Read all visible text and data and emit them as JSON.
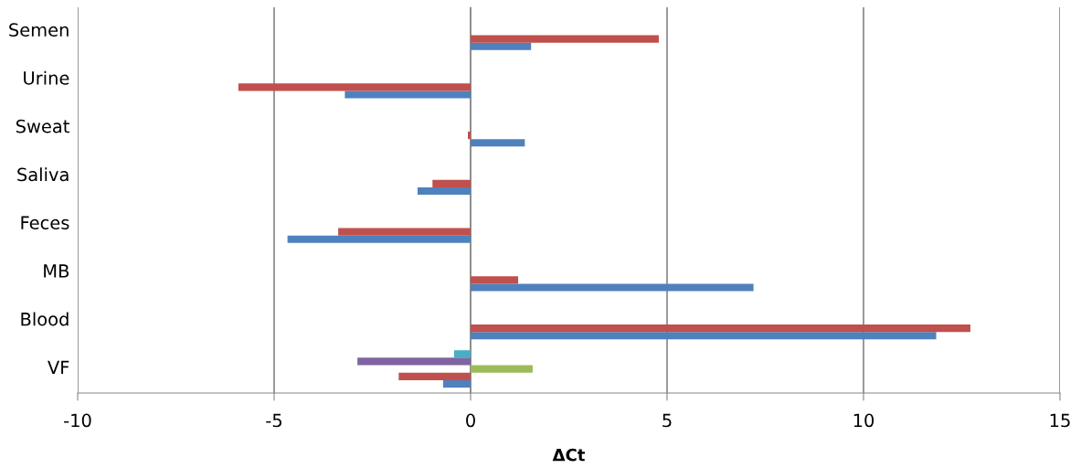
{
  "chart_data": {
    "type": "bar",
    "orientation": "horizontal",
    "xlabel": "ΔCt",
    "categories": [
      "Semen",
      "Urine",
      "Sweat",
      "Saliva",
      "Feces",
      "MB",
      "Blood",
      "VF"
    ],
    "series": [
      {
        "color": "#4f81bd",
        "values": [
          1.54,
          -3.2,
          1.38,
          -1.35,
          -4.66,
          7.2,
          11.85,
          -0.7
        ]
      },
      {
        "color": "#c0504d",
        "values": [
          4.79,
          -5.91,
          -0.07,
          -0.97,
          -3.37,
          1.21,
          12.72,
          -1.83
        ]
      },
      {
        "color": "#9bbb59",
        "values": [
          null,
          null,
          null,
          null,
          null,
          null,
          null,
          1.58
        ]
      },
      {
        "color": "#8064a2",
        "values": [
          null,
          null,
          null,
          null,
          null,
          null,
          null,
          -2.88
        ]
      },
      {
        "color": "#4bacc6",
        "values": [
          null,
          null,
          null,
          null,
          null,
          null,
          null,
          -0.42
        ]
      }
    ],
    "xlim": [
      -10,
      15
    ],
    "xticks": [
      -10,
      -5,
      0,
      5,
      10,
      15
    ],
    "grid": "x"
  }
}
